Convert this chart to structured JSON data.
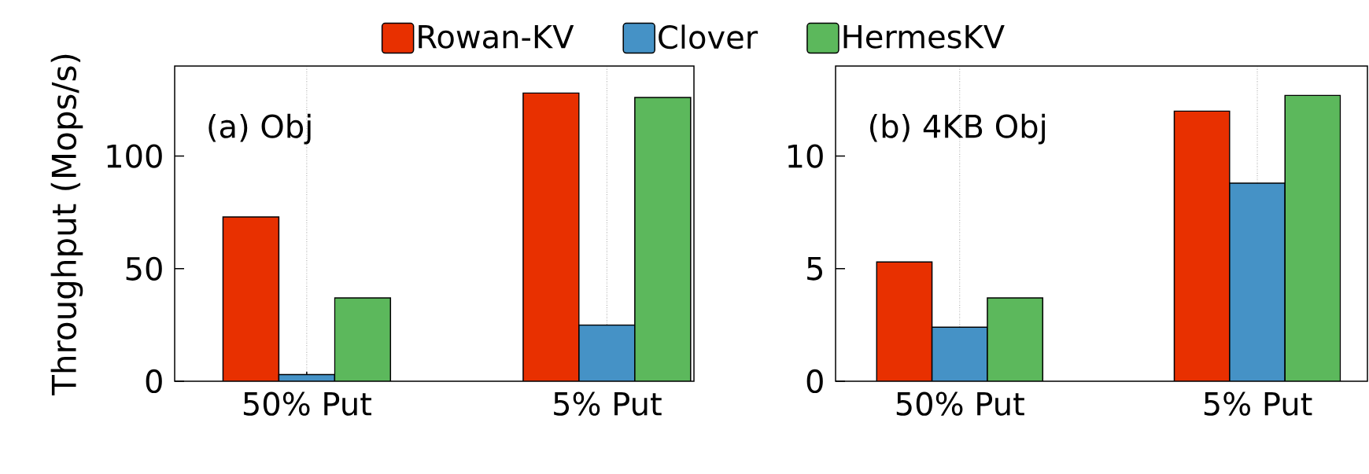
{
  "chart_data": [
    {
      "type": "bar",
      "ylabel": "Throughput (Mops/s)",
      "categories": [
        "50% Put",
        "5% Put"
      ],
      "series": [
        {
          "name": "Rowan-KV",
          "color": "#e83000",
          "values": [
            73,
            128
          ]
        },
        {
          "name": "Clover",
          "color": "#4592c6",
          "values": [
            3,
            25
          ]
        },
        {
          "name": "HermesKV",
          "color": "#5cb85c",
          "values": [
            37,
            126
          ]
        }
      ],
      "ylim": [
        0,
        140
      ],
      "yticks": [
        0,
        50,
        100
      ],
      "grid": "x",
      "legend": "top",
      "annotations": [
        "(a) Obj"
      ]
    },
    {
      "type": "bar",
      "categories": [
        "50% Put",
        "5% Put"
      ],
      "series": [
        {
          "color": "#e83000",
          "values": [
            5.3,
            12.0
          ]
        },
        {
          "color": "#4592c6",
          "values": [
            2.4,
            8.8
          ]
        },
        {
          "color": "#5cb85c",
          "values": [
            3.7,
            12.7
          ]
        }
      ],
      "ylim": [
        0,
        14
      ],
      "yticks": [
        0,
        5,
        10
      ],
      "grid": "x",
      "annotations": [
        "(b) 4KB Obj"
      ]
    }
  ]
}
